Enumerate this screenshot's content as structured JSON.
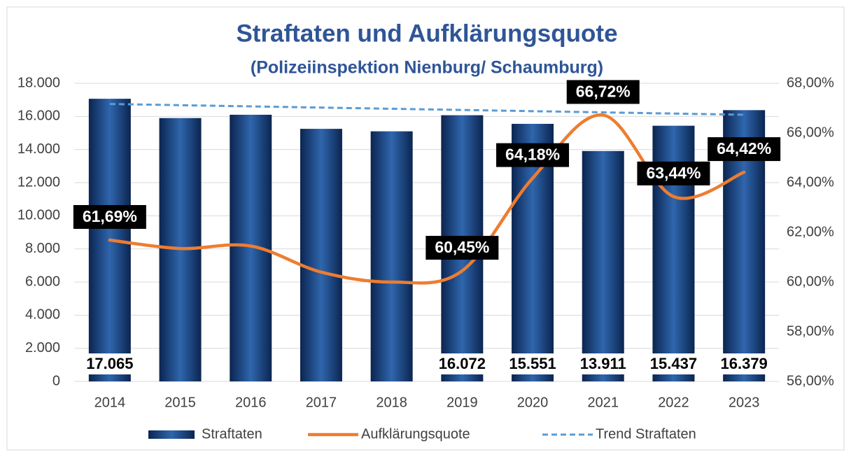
{
  "chart_data": {
    "type": "bar",
    "title": "Straftaten und Aufklärungsquote",
    "subtitle": "(Polizeiinspektion Nienburg/ Schaumburg)",
    "categories": [
      "2014",
      "2015",
      "2016",
      "2017",
      "2018",
      "2019",
      "2020",
      "2021",
      "2022",
      "2023"
    ],
    "series": [
      {
        "name": "Straftaten",
        "type": "bar",
        "color": "#1f4e8c",
        "values": [
          17065,
          15900,
          16100,
          15250,
          15100,
          16072,
          15551,
          13911,
          15437,
          16379
        ],
        "value_labels": [
          "17.065",
          null,
          null,
          null,
          null,
          "16.072",
          "15.551",
          "13.911",
          "15.437",
          "16.379"
        ]
      },
      {
        "name": "Aufklärungsquote",
        "type": "line",
        "axis": "y2",
        "color": "#ed7d31",
        "values": [
          61.69,
          61.35,
          61.45,
          60.4,
          60.0,
          60.45,
          64.18,
          66.72,
          63.44,
          64.42
        ],
        "value_labels": [
          "61,69%",
          null,
          null,
          null,
          null,
          "60,45%",
          "64,18%",
          "66,72%",
          "63,44%",
          "64,42%"
        ]
      },
      {
        "name": "Trend Straftaten",
        "type": "trend",
        "color": "#5b9bd5",
        "values": [
          16750,
          16678,
          16606,
          16533,
          16461,
          16389,
          16317,
          16244,
          16172,
          16100
        ]
      }
    ],
    "ylim": [
      0,
      18000
    ],
    "yticks": [
      0,
      {
        "value": 2000,
        "label": "2.000"
      },
      {
        "value": 4000,
        "label": "4.000"
      },
      {
        "value": 6000,
        "label": "6.000"
      },
      {
        "value": 8000,
        "label": "8.000"
      },
      {
        "value": 10000,
        "label": "10.000"
      },
      {
        "value": 12000,
        "label": "12.000"
      },
      {
        "value": 14000,
        "label": "14.000"
      },
      {
        "value": 16000,
        "label": "16.000"
      },
      {
        "value": 18000,
        "label": "18.000"
      }
    ],
    "y2lim": [
      56,
      68
    ],
    "y2ticks": [
      {
        "value": 56,
        "label": "56,00%"
      },
      {
        "value": 58,
        "label": "58,00%"
      },
      {
        "value": 60,
        "label": "60,00%"
      },
      {
        "value": 62,
        "label": "62,00%"
      },
      {
        "value": 64,
        "label": "64,00%"
      },
      {
        "value": 66,
        "label": "66,00%"
      },
      {
        "value": 68,
        "label": "68,00%"
      }
    ],
    "grid": true,
    "legend": "bottom"
  }
}
